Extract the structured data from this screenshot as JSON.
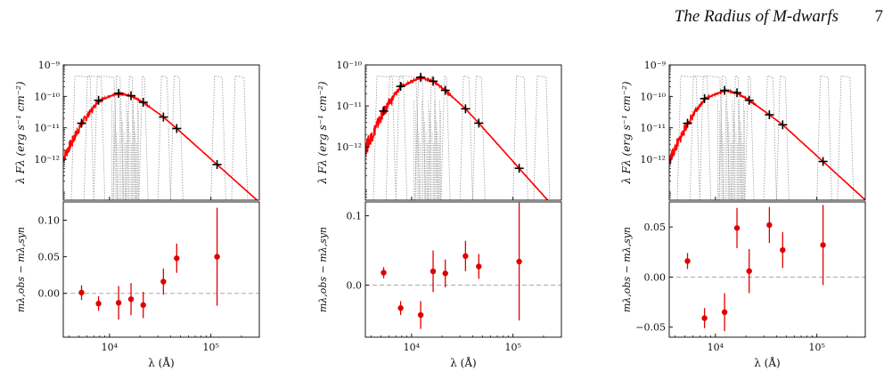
{
  "header": {
    "running_title": "The Radius of M-dwarfs",
    "page_number": "7"
  },
  "chart_data": [
    {
      "type": "scatter",
      "id": "A",
      "top": {
        "ylabel": "λ Fλ (erg s⁻¹ cm⁻²)",
        "yscale": "log",
        "ylim": [
          5e-14,
          1e-09
        ],
        "yticks": [
          {
            "v": 1e-09,
            "t": "10⁻⁹"
          },
          {
            "v": 1e-10,
            "t": "10⁻¹⁰"
          },
          {
            "v": 1e-11,
            "t": "10⁻¹¹"
          },
          {
            "v": 1e-12,
            "t": "10⁻¹²"
          }
        ],
        "photometry": [
          {
            "x": 5300,
            "y": 1.4e-11
          },
          {
            "x": 7800,
            "y": 7.5e-11
          },
          {
            "x": 12300,
            "y": 1.25e-10
          },
          {
            "x": 16300,
            "y": 1.05e-10
          },
          {
            "x": 21500,
            "y": 6.5e-11
          },
          {
            "x": 34000,
            "y": 2.2e-11
          },
          {
            "x": 46000,
            "y": 9.5e-12
          },
          {
            "x": 115000,
            "y": 6.8e-13
          }
        ]
      },
      "bottom": {
        "ylabel": "mλ,obs − mλ,syn",
        "ylim": [
          -0.06,
          0.125
        ],
        "yticks": [
          {
            "v": 0.0,
            "t": "0.00"
          },
          {
            "v": 0.05,
            "t": "0.05"
          },
          {
            "v": 0.1,
            "t": "0.10"
          }
        ],
        "residuals": [
          {
            "x": 5300,
            "y": 0.001,
            "err": 0.01
          },
          {
            "x": 7800,
            "y": -0.014,
            "err": 0.01
          },
          {
            "x": 12300,
            "y": -0.013,
            "err": 0.023
          },
          {
            "x": 16300,
            "y": -0.008,
            "err": 0.022
          },
          {
            "x": 21500,
            "y": -0.016,
            "err": 0.018
          },
          {
            "x": 34000,
            "y": 0.016,
            "err": 0.018
          },
          {
            "x": 46000,
            "y": 0.048,
            "err": 0.02
          },
          {
            "x": 115000,
            "y": 0.05,
            "err": 0.067
          }
        ]
      },
      "xlabel": "λ (Å)",
      "xscale": "log",
      "xlim": [
        3500,
        300000
      ],
      "xticks": [
        {
          "v": 10000,
          "t": "10⁴"
        },
        {
          "v": 100000,
          "t": "10⁵"
        }
      ]
    },
    {
      "type": "scatter",
      "id": "B",
      "top": {
        "ylabel": "λ Fλ (erg s⁻¹ cm⁻²)",
        "yscale": "log",
        "ylim": [
          5e-14,
          1e-10
        ],
        "yticks": [
          {
            "v": 1e-10,
            "t": "10⁻¹⁰"
          },
          {
            "v": 1e-11,
            "t": "10⁻¹¹"
          },
          {
            "v": 1e-12,
            "t": "10⁻¹²"
          }
        ],
        "photometry": [
          {
            "x": 5300,
            "y": 7.5e-12
          },
          {
            "x": 7800,
            "y": 3e-11
          },
          {
            "x": 12300,
            "y": 5e-11
          },
          {
            "x": 16300,
            "y": 4e-11
          },
          {
            "x": 21500,
            "y": 2.4e-11
          },
          {
            "x": 34000,
            "y": 8.5e-12
          },
          {
            "x": 46000,
            "y": 3.8e-12
          },
          {
            "x": 115000,
            "y": 3e-13
          }
        ]
      },
      "bottom": {
        "ylabel": "mλ,obs − mλ,syn",
        "ylim": [
          -0.075,
          0.12
        ],
        "yticks": [
          {
            "v": 0.0,
            "t": "0.0"
          },
          {
            "v": 0.1,
            "t": "0.1"
          }
        ],
        "residuals": [
          {
            "x": 5300,
            "y": 0.018,
            "err": 0.008
          },
          {
            "x": 7800,
            "y": -0.033,
            "err": 0.01
          },
          {
            "x": 12300,
            "y": -0.043,
            "err": 0.02
          },
          {
            "x": 16300,
            "y": 0.02,
            "err": 0.03
          },
          {
            "x": 21500,
            "y": 0.017,
            "err": 0.02
          },
          {
            "x": 34000,
            "y": 0.042,
            "err": 0.022
          },
          {
            "x": 46000,
            "y": 0.027,
            "err": 0.018
          },
          {
            "x": 115000,
            "y": 0.034,
            "err": 0.085
          }
        ]
      },
      "xlabel": "λ (Å)",
      "xscale": "log",
      "xlim": [
        3500,
        300000
      ],
      "xticks": [
        {
          "v": 10000,
          "t": "10⁴"
        },
        {
          "v": 100000,
          "t": "10⁵"
        }
      ]
    },
    {
      "type": "scatter",
      "id": "C",
      "top": {
        "ylabel": "λ Fλ (erg s⁻¹ cm⁻²)",
        "yscale": "log",
        "ylim": [
          5e-14,
          1e-09
        ],
        "yticks": [
          {
            "v": 1e-09,
            "t": "10⁻⁹"
          },
          {
            "v": 1e-10,
            "t": "10⁻¹⁰"
          },
          {
            "v": 1e-11,
            "t": "10⁻¹¹"
          },
          {
            "v": 1e-12,
            "t": "10⁻¹²"
          }
        ],
        "photometry": [
          {
            "x": 5300,
            "y": 1.4e-11
          },
          {
            "x": 7800,
            "y": 8.5e-11
          },
          {
            "x": 12300,
            "y": 1.55e-10
          },
          {
            "x": 16300,
            "y": 1.3e-10
          },
          {
            "x": 21500,
            "y": 7.5e-11
          },
          {
            "x": 34000,
            "y": 2.6e-11
          },
          {
            "x": 46000,
            "y": 1.25e-11
          },
          {
            "x": 115000,
            "y": 8.5e-13
          }
        ]
      },
      "bottom": {
        "ylabel": "mλ,obs − mλ,syn",
        "ylim": [
          -0.06,
          0.075
        ],
        "yticks": [
          {
            "v": -0.05,
            "t": "−0.05"
          },
          {
            "v": 0.0,
            "t": "0.00"
          },
          {
            "v": 0.05,
            "t": "0.05"
          }
        ],
        "residuals": [
          {
            "x": 5300,
            "y": 0.016,
            "err": 0.008
          },
          {
            "x": 7800,
            "y": -0.041,
            "err": 0.01
          },
          {
            "x": 12300,
            "y": -0.035,
            "err": 0.019
          },
          {
            "x": 16300,
            "y": 0.049,
            "err": 0.02
          },
          {
            "x": 21500,
            "y": 0.006,
            "err": 0.022
          },
          {
            "x": 34000,
            "y": 0.052,
            "err": 0.018
          },
          {
            "x": 46000,
            "y": 0.027,
            "err": 0.018
          },
          {
            "x": 115000,
            "y": 0.032,
            "err": 0.04
          }
        ]
      },
      "xlabel": "λ (Å)",
      "xscale": "log",
      "xlim": [
        3500,
        300000
      ],
      "xticks": [
        {
          "v": 10000,
          "t": "10⁴"
        },
        {
          "v": 100000,
          "t": "10⁵"
        }
      ]
    }
  ],
  "colors": {
    "model": "#ff0000",
    "residual": "#e00000",
    "photometry": "#000000",
    "filter": "#9a9a9a",
    "zero_line": "#aaaaaa"
  }
}
